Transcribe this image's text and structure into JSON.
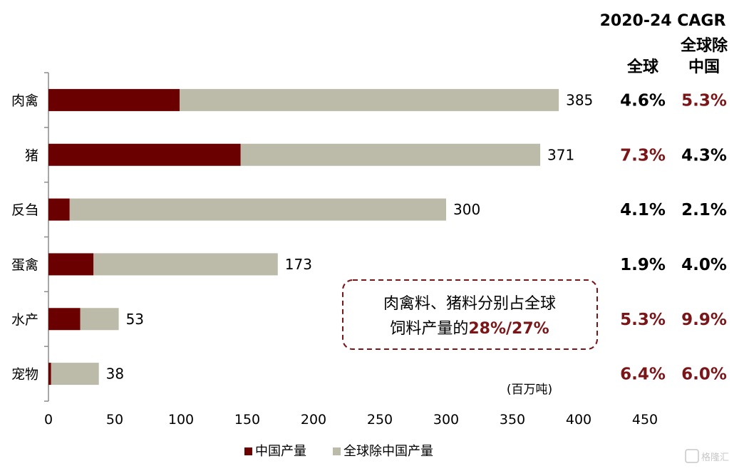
{
  "chart_data": {
    "type": "bar",
    "orientation": "horizontal",
    "stacked": true,
    "categories": [
      "肉禽",
      "猪",
      "反刍",
      "蛋禽",
      "水产",
      "宠物"
    ],
    "series": [
      {
        "name": "中国产量",
        "color": "#6b0000",
        "values": [
          99,
          145,
          16,
          34,
          24,
          2
        ]
      },
      {
        "name": "全球除中国产量",
        "color": "#bcbaa8",
        "values": [
          286,
          226,
          284,
          139,
          29,
          36
        ]
      }
    ],
    "totals": [
      "385",
      "371",
      "300",
      "173",
      "53",
      "38"
    ],
    "xlim": [
      0,
      450
    ],
    "xticks": [
      "0",
      "50",
      "100",
      "150",
      "200",
      "250",
      "300",
      "350",
      "400",
      "450"
    ],
    "unit_label": "(百万吨)",
    "legend_position": "bottom"
  },
  "cagr": {
    "title": "2020-24 CAGR",
    "col1_header": "全球",
    "col2_header_line1": "全球除",
    "col2_header_line2": "中国",
    "rows": [
      {
        "global": "4.6%",
        "global_color": "#000000",
        "ex_china": "5.3%",
        "ex_china_color": "#7a1518"
      },
      {
        "global": "7.3%",
        "global_color": "#7a1518",
        "ex_china": "4.3%",
        "ex_china_color": "#000000"
      },
      {
        "global": "4.1%",
        "global_color": "#000000",
        "ex_china": "2.1%",
        "ex_china_color": "#000000"
      },
      {
        "global": "1.9%",
        "global_color": "#000000",
        "ex_china": "4.0%",
        "ex_china_color": "#000000"
      },
      {
        "global": "5.3%",
        "global_color": "#7a1518",
        "ex_china": "9.9%",
        "ex_china_color": "#7a1518"
      },
      {
        "global": "6.4%",
        "global_color": "#7a1518",
        "ex_china": "6.0%",
        "ex_china_color": "#7a1518"
      }
    ]
  },
  "callout": {
    "line1": "肉禽料、猪料分别占全球",
    "line2_prefix": "饲料产量的",
    "line2_highlight": "28%/27%",
    "border_color": "#7a1518",
    "highlight_color": "#7a1518"
  },
  "watermark": "格隆汇"
}
